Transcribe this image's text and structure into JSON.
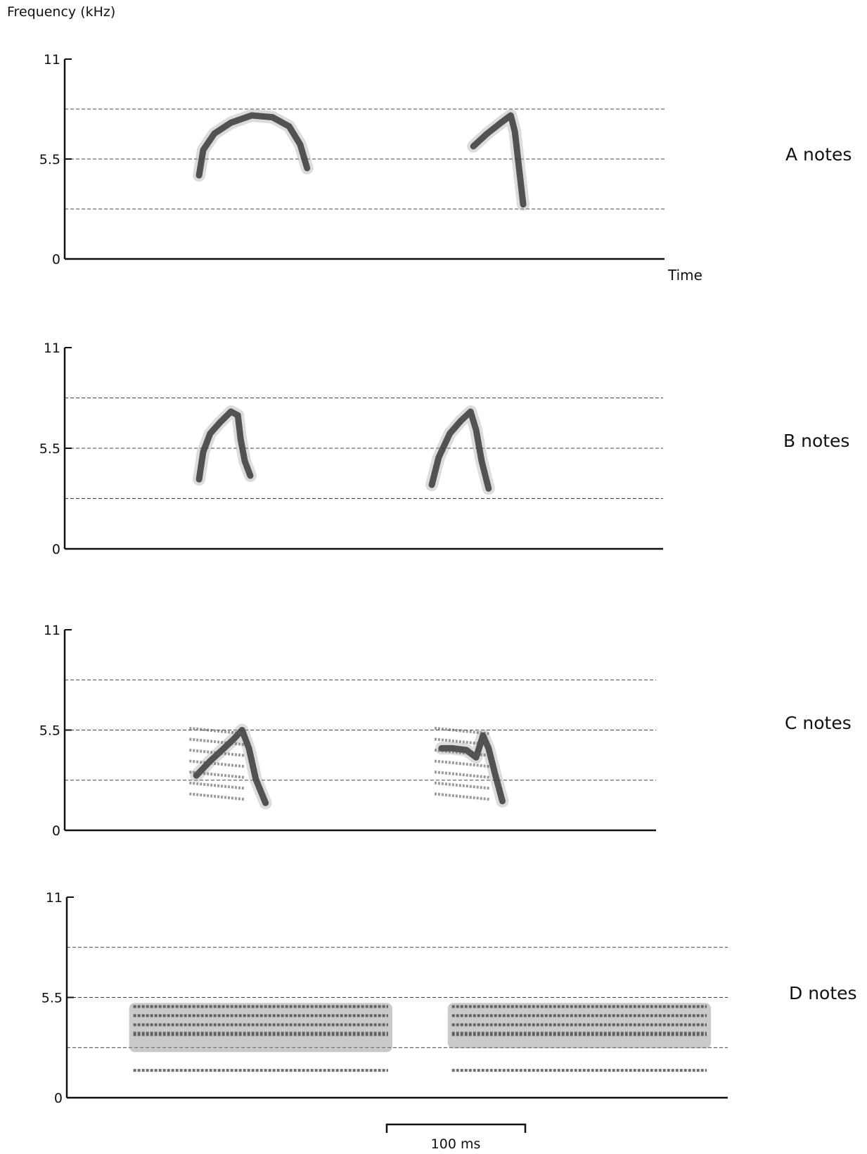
{
  "figure": {
    "y_axis_title": "Frequency (kHz)",
    "x_axis_title": "Time",
    "scale_bar_label": "100 ms",
    "gridline_color": "#444444",
    "trace_color": "#3a3a3a"
  },
  "chart_data": [
    {
      "type": "spectrogram",
      "title": "A notes",
      "ylabel": "Frequency (kHz)",
      "xlabel": "Time",
      "ylim": [
        0,
        11
      ],
      "yticks": [
        "0",
        "5.5",
        "11"
      ],
      "dashed_reference_lines_khz": [
        2.75,
        5.5,
        8.25
      ],
      "notes": [
        {
          "time_ms": [
            97,
            100,
            108,
            120,
            135,
            150,
            162,
            170,
            175
          ],
          "freq_khz": [
            4.6,
            6.0,
            6.9,
            7.5,
            7.9,
            7.8,
            7.3,
            6.3,
            5.0
          ]
        },
        {
          "time_ms": [
            295,
            305,
            315,
            322,
            325,
            328,
            331
          ],
          "freq_khz": [
            6.2,
            6.9,
            7.5,
            7.9,
            7.0,
            5.0,
            3.0
          ]
        }
      ]
    },
    {
      "type": "spectrogram",
      "title": "B notes",
      "ylim": [
        0,
        11
      ],
      "yticks": [
        "0",
        "5.5",
        "11"
      ],
      "dashed_reference_lines_khz": [
        2.75,
        5.5,
        8.25
      ],
      "notes": [
        {
          "time_ms": [
            97,
            100,
            105,
            112,
            120,
            125,
            127,
            130,
            134
          ],
          "freq_khz": [
            3.8,
            5.3,
            6.3,
            6.9,
            7.5,
            7.3,
            6.0,
            4.8,
            4.0
          ]
        },
        {
          "time_ms": [
            265,
            270,
            278,
            286,
            293,
            297,
            301,
            306
          ],
          "freq_khz": [
            3.5,
            5.0,
            6.3,
            7.0,
            7.5,
            6.5,
            4.8,
            3.3
          ]
        }
      ]
    },
    {
      "type": "spectrogram",
      "title": "C notes",
      "ylim": [
        0,
        11
      ],
      "yticks": [
        "0",
        "5.5",
        "11"
      ],
      "dashed_reference_lines_khz": [
        2.75,
        5.5,
        8.25
      ],
      "notes": [
        {
          "time_ms": [
            95,
            105,
            115,
            122,
            128,
            133,
            138,
            145
          ],
          "freq_khz": [
            3.0,
            3.8,
            4.5,
            5.0,
            5.5,
            4.5,
            2.8,
            1.5
          ]
        },
        {
          "time_ms": [
            272,
            280,
            290,
            297,
            302,
            306,
            311,
            316
          ],
          "freq_khz": [
            4.5,
            4.5,
            4.4,
            4.0,
            5.2,
            4.5,
            3.0,
            1.6
          ]
        }
      ]
    },
    {
      "type": "spectrogram",
      "title": "D notes",
      "ylim": [
        0,
        11
      ],
      "yticks": [
        "0",
        "5.5",
        "11"
      ],
      "dashed_reference_lines_khz": [
        2.75,
        5.5,
        8.25
      ],
      "notes": [
        {
          "time_ms": [
            45,
            235
          ],
          "band_khz": [
            2.5,
            5.2
          ],
          "harmonic_khz": [
            3.5,
            4.0,
            4.5,
            5.0,
            1.5
          ]
        },
        {
          "time_ms": [
            275,
            465
          ],
          "band_khz": [
            2.7,
            5.2
          ],
          "harmonic_khz": [
            3.5,
            4.0,
            4.5,
            5.0,
            1.5
          ]
        }
      ]
    }
  ]
}
